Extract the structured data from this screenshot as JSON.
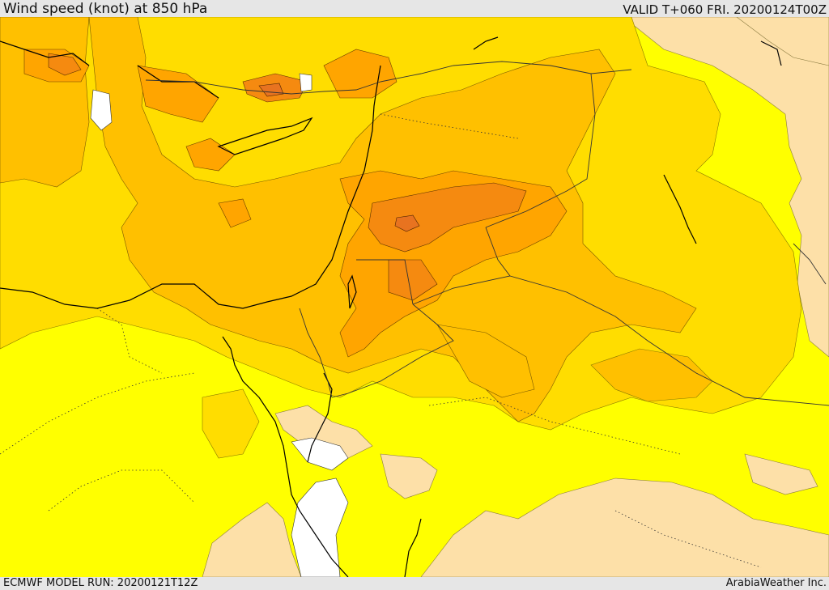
{
  "header": {
    "title": "Wind speed (knot) at 850 hPa",
    "valid": "VALID T+060 FRI. 20200124T00Z"
  },
  "footer": {
    "model_run": "ECMWF MODEL RUN: 20200121T12Z",
    "credit": "ArabiaWeather Inc."
  },
  "colors": {
    "calm": "#ffffff",
    "low": "#fde0a8",
    "light": "#ffff00",
    "moderate": "#ffdd00",
    "fresh": "#ffc000",
    "strong": "#ffa500",
    "very_strong": "#f58a10",
    "gale": "#e87320",
    "coast": "#000000"
  }
}
